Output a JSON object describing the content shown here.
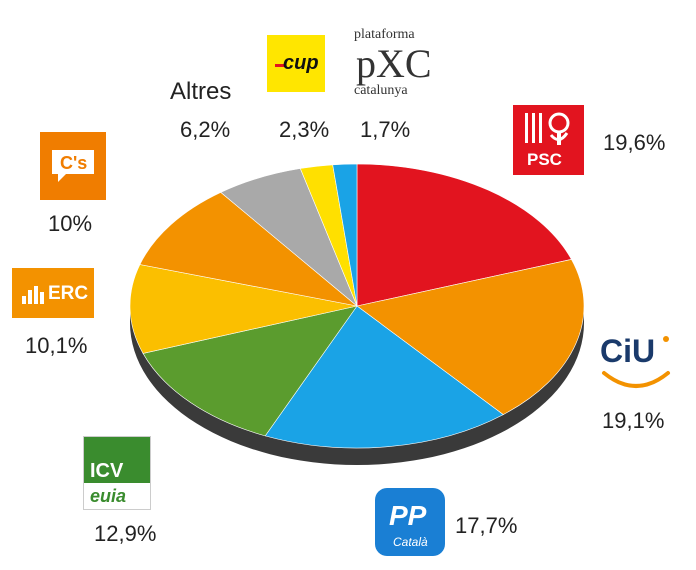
{
  "chart_data": {
    "type": "pie",
    "title": "",
    "categories": [
      "PSC",
      "CiU",
      "PP",
      "ICV-EUiA",
      "ERC",
      "C's",
      "Altres",
      "CUP",
      "PxC"
    ],
    "values": [
      19.6,
      19.1,
      17.7,
      12.9,
      10.1,
      10.0,
      6.2,
      2.3,
      1.7
    ],
    "value_labels": [
      "19,6%",
      "19,1%",
      "17,7%",
      "12,9%",
      "10,1%",
      "10%",
      "6,2%",
      "2,3%",
      "1,7%"
    ],
    "colors": [
      "#e2141f",
      "#f39200",
      "#1aa3e6",
      "#5b9c2e",
      "#fbbf00",
      "#f39200",
      "#a9a9a9",
      "#ffe000",
      "#1aa3e6"
    ],
    "start_angle_deg": 0,
    "direction": "clockwise",
    "style": "3d-tilted",
    "legend": "logos-around-slices",
    "slice_label_text": {
      "Altres": "Altres"
    }
  },
  "logos": {
    "psc": {
      "text": "PSC",
      "icon": "rose-fist-icon",
      "color": "#e2141f"
    },
    "ciu": {
      "text": "CiU",
      "icon": "smile-arc-icon",
      "color": "#1a3a6b"
    },
    "pp": {
      "text": "PP",
      "subtext": "Català",
      "icon": "pp-logo",
      "color": "#1a7fd4"
    },
    "icv": {
      "text": "ICV",
      "subtext": "euia",
      "icon": "icv-euia-logo",
      "color": "#3a8c2e"
    },
    "erc": {
      "text": "ERC",
      "icon": "erc-bars-icon",
      "color": "#f39200"
    },
    "cs": {
      "text": "C's",
      "icon": "speech-bubble-icon",
      "color": "#f07d00"
    },
    "cup": {
      "text": "cup",
      "icon": "cup-logo",
      "color": "#ffe600"
    },
    "pxc": {
      "top": "plataforma",
      "main": "pXC",
      "bottom": "catalunya",
      "color": "#333333"
    }
  }
}
